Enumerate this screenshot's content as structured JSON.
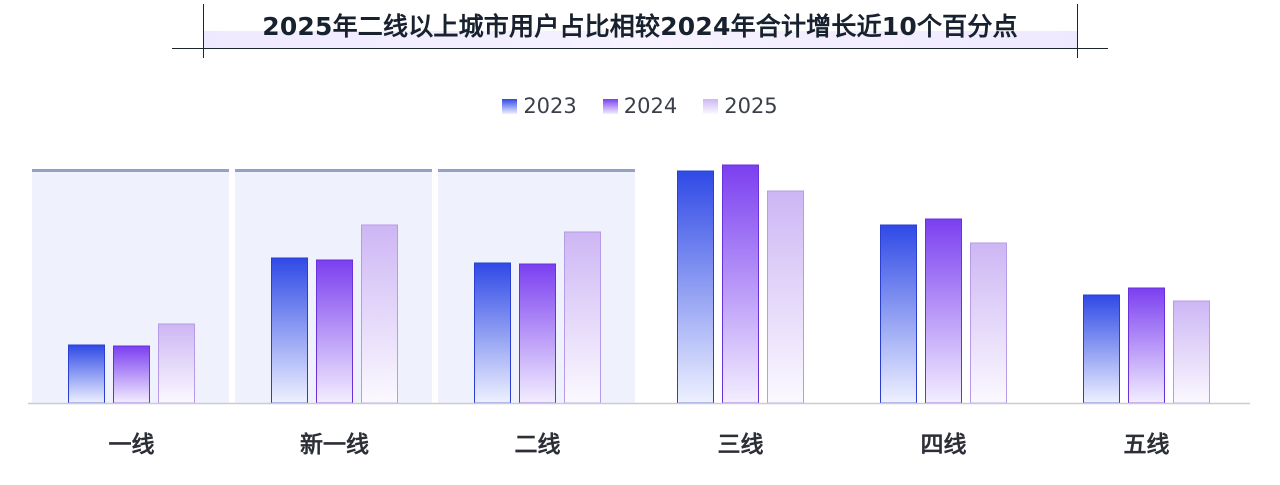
{
  "title": "2025年二线以上城市用户占比相较2024年合计增长近10个百分点",
  "legend": [
    {
      "label": "2023",
      "color_top": "#2f49e6",
      "color_bottom": "#eef1ff"
    },
    {
      "label": "2024",
      "color_top": "#7b3ff0",
      "color_bottom": "#f3eeff"
    },
    {
      "label": "2025",
      "color_top": "#cdb6f4",
      "color_bottom": "#fbf9ff"
    }
  ],
  "chart_data": {
    "type": "bar",
    "title": "2025年二线以上城市用户占比相较2024年合计增长近10个百分点",
    "categories": [
      "一线",
      "新一线",
      "二线",
      "三线",
      "四线",
      "五线"
    ],
    "series": [
      {
        "name": "2023",
        "values": [
          58,
          145,
          140,
          232,
          178,
          108
        ]
      },
      {
        "name": "2024",
        "values": [
          57,
          143,
          139,
          238,
          184,
          115
        ]
      },
      {
        "name": "2025",
        "values": [
          79,
          178,
          171,
          212,
          160,
          102
        ]
      }
    ],
    "highlighted_categories": [
      "一线",
      "新一线",
      "二线"
    ],
    "ylim": [
      0,
      240
    ],
    "axis_labels_shown": false,
    "legend_position": "top-center"
  }
}
